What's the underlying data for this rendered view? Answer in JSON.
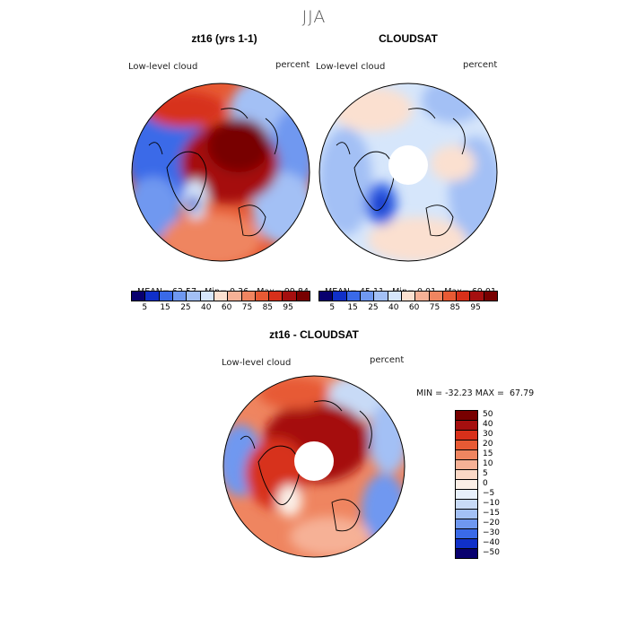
{
  "season_title": "JJA",
  "panels": {
    "model": {
      "title": "zt16 (yrs 1-1)",
      "field_label": "Low-level cloud",
      "units_label": "percent",
      "stats": {
        "mean_label": "MEAN=",
        "mean": "62.57",
        "min_label": "Min=",
        "min": "0.36",
        "max_label": "Max=",
        "max": "99.84"
      },
      "colorbar_ticks": [
        "5",
        "15",
        "25",
        "40",
        "60",
        "75",
        "85",
        "95"
      ]
    },
    "obs": {
      "title": "CLOUDSAT",
      "field_label": "Low-level cloud",
      "units_label": "percent",
      "stats": {
        "mean_label": "MEAN=",
        "mean": "45.11",
        "min_label": "Min=",
        "min": "0.01",
        "max_label": "Max=",
        "max": "69.01"
      },
      "colorbar_ticks": [
        "5",
        "15",
        "25",
        "40",
        "60",
        "75",
        "85",
        "95"
      ]
    },
    "diff": {
      "title": "zt16 - CLOUDSAT",
      "field_label": "Low-level cloud",
      "units_label": "percent",
      "minmax_text": "MIN = -32.23 MAX =  67.79",
      "colorbar_ticks": [
        "50",
        "40",
        "30",
        "20",
        "15",
        "10",
        "5",
        "0",
        "−5",
        "−10",
        "−15",
        "−20",
        "−30",
        "−40",
        "−50"
      ]
    }
  },
  "colors": {
    "abs_scale": [
      "#08006e",
      "#1030c8",
      "#3a6ae8",
      "#6f98f0",
      "#a3c0f5",
      "#d6e6fb",
      "#fbe0d0",
      "#f6b196",
      "#ef8560",
      "#e75a34",
      "#d7301a",
      "#a50f0f",
      "#780000"
    ],
    "diff_scale": [
      "#780000",
      "#a50f0f",
      "#d7301a",
      "#e75a34",
      "#ef8560",
      "#f6b196",
      "#fbd8c6",
      "#fbeee6",
      "#e8f0fb",
      "#c8daf6",
      "#a3c0f5",
      "#6f98f0",
      "#3a6ae8",
      "#1030c8",
      "#08006e"
    ]
  }
}
